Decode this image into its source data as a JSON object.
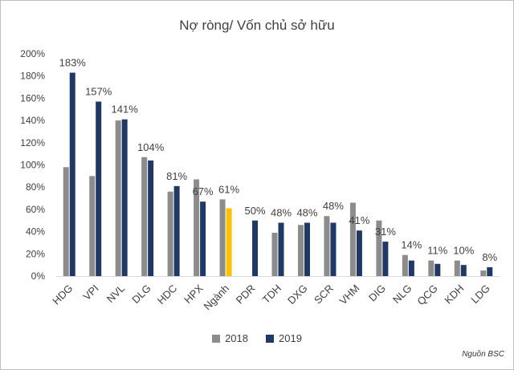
{
  "chart_data": {
    "type": "bar",
    "title": "Nợ ròng/ Vốn chủ sở hữu",
    "categories": [
      "HDG",
      "VPI",
      "NVL",
      "DLG",
      "HDC",
      "HPX",
      "Ngành",
      "PDR",
      "TDH",
      "DXG",
      "SCR",
      "VHM",
      "DIG",
      "NLG",
      "QCG",
      "KDH",
      "LDG"
    ],
    "series": [
      {
        "name": "2018",
        "color": "#8c8c8c",
        "values": [
          98,
          90,
          140,
          107,
          76,
          87,
          69,
          null,
          39,
          46,
          54,
          66,
          50,
          19,
          14,
          14,
          5
        ]
      },
      {
        "name": "2019",
        "color": "#203864",
        "values": [
          183,
          157,
          141,
          104,
          81,
          67,
          61,
          50,
          48,
          48,
          48,
          41,
          31,
          14,
          11,
          10,
          8
        ]
      }
    ],
    "highlight": {
      "category": "Ngành",
      "series": "2019",
      "color": "#ffc000"
    },
    "data_labels": [
      "183%",
      "157%",
      "141%",
      "104%",
      "81%",
      "67%",
      "61%",
      "50%",
      "48%",
      "48%",
      "48%",
      "41%",
      "31%",
      "14%",
      "11%",
      "10%",
      "8%"
    ],
    "ylim": [
      0,
      200
    ],
    "yticks": [
      "0%",
      "20%",
      "40%",
      "60%",
      "80%",
      "100%",
      "120%",
      "140%",
      "160%",
      "180%",
      "200%"
    ],
    "ytick_values": [
      0,
      20,
      40,
      60,
      80,
      100,
      120,
      140,
      160,
      180,
      200
    ],
    "grid": false,
    "legend": "bottom",
    "source": "Nguồn BSC"
  }
}
